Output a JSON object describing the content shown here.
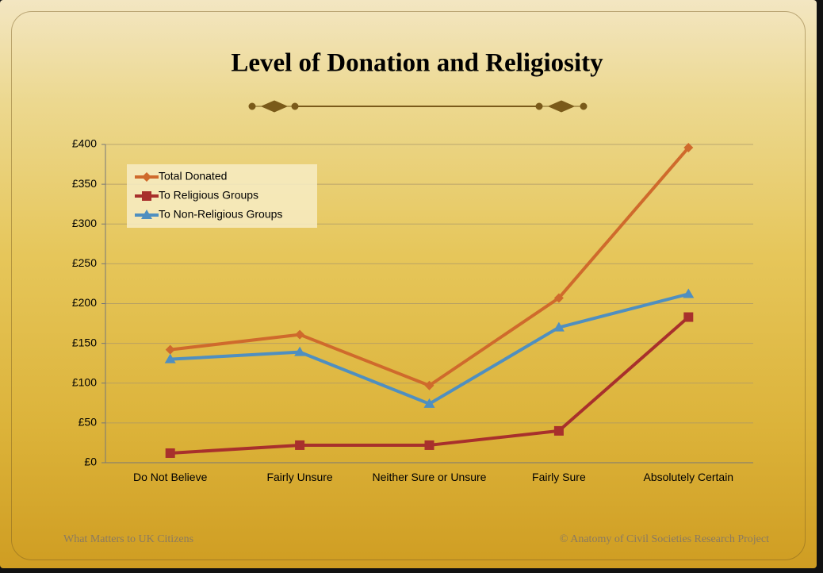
{
  "chart_data": {
    "type": "line",
    "title": "Level of Donation and Religiosity",
    "categories": [
      "Do Not Believe",
      "Fairly Unsure",
      "Neither Sure or Unsure",
      "Fairly Sure",
      "Absolutely Certain"
    ],
    "series": [
      {
        "name": "Total Donated",
        "color": "#cf6a2c",
        "marker": "diamond",
        "values": [
          142,
          161,
          97,
          207,
          396
        ]
      },
      {
        "name": "To Religious Groups",
        "color": "#a8302c",
        "marker": "square",
        "values": [
          12,
          22,
          22,
          40,
          183
        ]
      },
      {
        "name": "To Non-Religious Groups",
        "color": "#4f8fc0",
        "marker": "triangle",
        "values": [
          130,
          139,
          74,
          170,
          212
        ]
      }
    ],
    "ylim": [
      0,
      400
    ],
    "yticks": [
      {
        "value": 0,
        "label": "£0"
      },
      {
        "value": 50,
        "label": "£50"
      },
      {
        "value": 100,
        "label": "£100"
      },
      {
        "value": 150,
        "label": "£150"
      },
      {
        "value": 200,
        "label": "£200"
      },
      {
        "value": 250,
        "label": "£250"
      },
      {
        "value": 300,
        "label": "£300"
      },
      {
        "value": 350,
        "label": "£350"
      },
      {
        "value": 400,
        "label": "£400"
      }
    ],
    "grid": true,
    "legend": "top-left"
  },
  "footer": {
    "left": "What Matters to UK Citizens",
    "right": "© Anatomy of Civil Societies Research Project"
  }
}
